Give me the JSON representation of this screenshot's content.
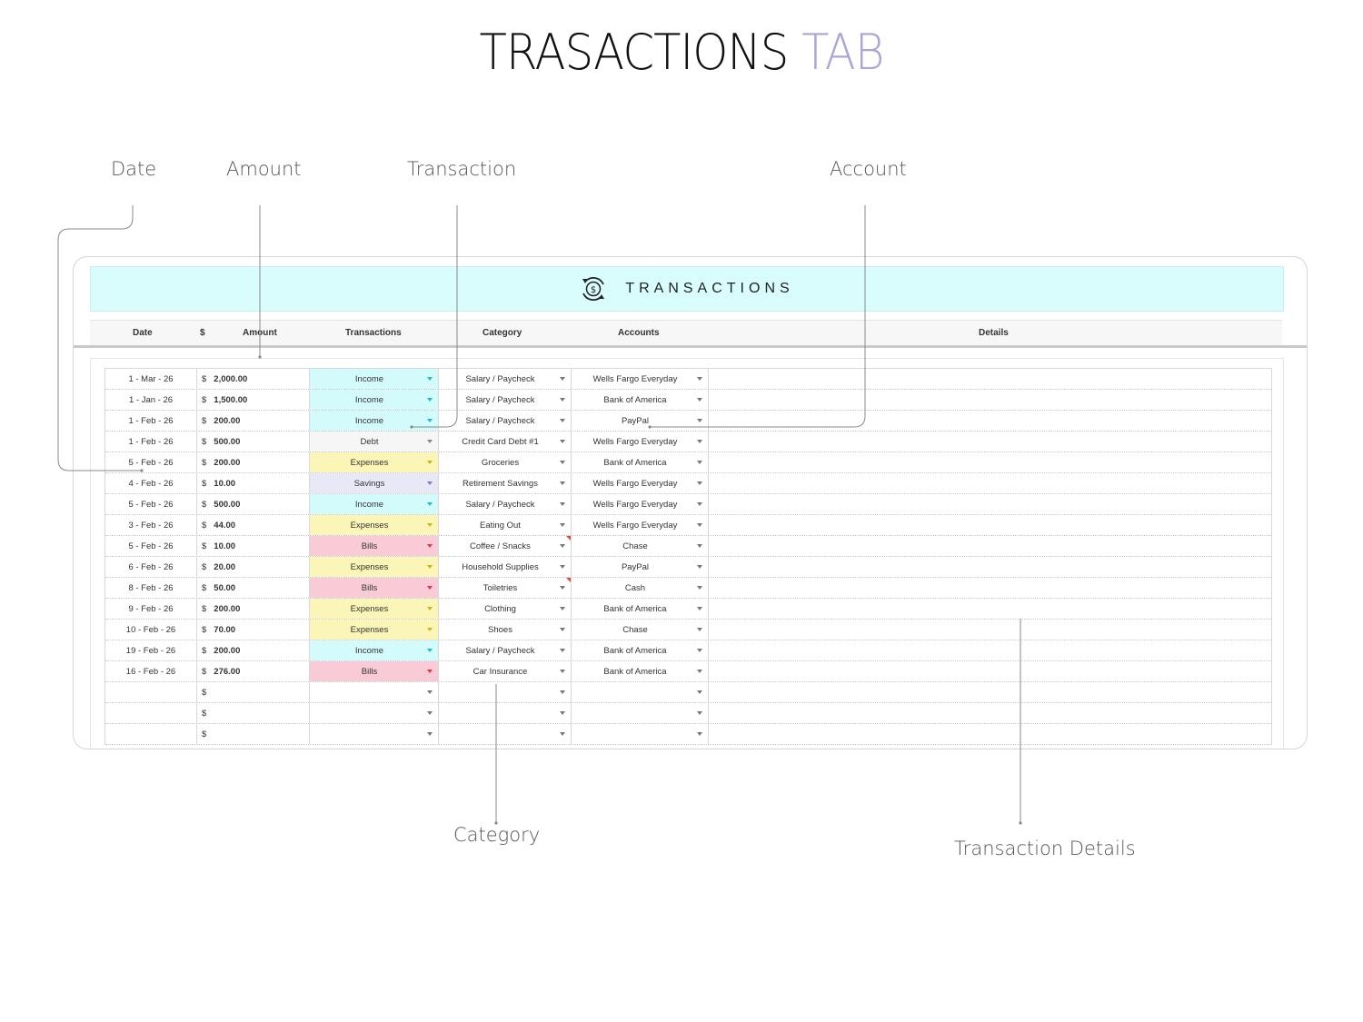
{
  "title": {
    "main": "TRASACTIONS",
    "accent": "TAB"
  },
  "colors": {
    "accent": "#a9a6d6",
    "banner": "#d9fcfd",
    "Income": "#d4fbfc",
    "Expenses": "#fbf6b7",
    "Bills": "#f9cbd6",
    "Savings": "#e9e8f6",
    "Debt": "#f6f6f6",
    "caret_Income": "#22b8c6",
    "caret_Expenses": "#c9b51c",
    "caret_Bills": "#e0334e",
    "caret_Savings": "#7f7bbf",
    "caret_Debt": "#888888"
  },
  "callouts": {
    "date": "Date",
    "amount": "Amount",
    "transaction": "Transaction",
    "account": "Account",
    "category": "Category",
    "details": "Transaction Details"
  },
  "sheet": {
    "banner_title": "TRANSACTIONS",
    "banner_icon": "dollar-cycle-icon",
    "headers": {
      "date": "Date",
      "dollar": "$",
      "amount": "Amount",
      "transactions": "Transactions",
      "category": "Category",
      "accounts": "Accounts",
      "details": "Details"
    },
    "currency_symbol": "$",
    "rows": [
      {
        "date": "1 - Mar - 26",
        "amount": "2,000.00",
        "type": "Income",
        "category": "Salary / Paycheck",
        "account": "Wells Fargo Everyday",
        "flag": false
      },
      {
        "date": "1 - Jan - 26",
        "amount": "1,500.00",
        "type": "Income",
        "category": "Salary / Paycheck",
        "account": "Bank of America",
        "flag": false
      },
      {
        "date": "1 - Feb - 26",
        "amount": "200.00",
        "type": "Income",
        "category": "Salary / Paycheck",
        "account": "PayPal",
        "flag": false
      },
      {
        "date": "1 - Feb - 26",
        "amount": "500.00",
        "type": "Debt",
        "category": "Credit Card Debt #1",
        "account": "Wells Fargo Everyday",
        "flag": false
      },
      {
        "date": "5 - Feb - 26",
        "amount": "200.00",
        "type": "Expenses",
        "category": "Groceries",
        "account": "Bank of America",
        "flag": false
      },
      {
        "date": "4 - Feb - 26",
        "amount": "10.00",
        "type": "Savings",
        "category": "Retirement Savings",
        "account": "Wells Fargo Everyday",
        "flag": false
      },
      {
        "date": "5 - Feb - 26",
        "amount": "500.00",
        "type": "Income",
        "category": "Salary / Paycheck",
        "account": "Wells Fargo Everyday",
        "flag": false
      },
      {
        "date": "3 - Feb - 26",
        "amount": "44.00",
        "type": "Expenses",
        "category": "Eating Out",
        "account": "Wells Fargo Everyday",
        "flag": false
      },
      {
        "date": "5 - Feb - 26",
        "amount": "10.00",
        "type": "Bills",
        "category": "Coffee / Snacks",
        "account": "Chase",
        "flag": true
      },
      {
        "date": "6 - Feb - 26",
        "amount": "20.00",
        "type": "Expenses",
        "category": "Household Supplies",
        "account": "PayPal",
        "flag": false
      },
      {
        "date": "8 - Feb - 26",
        "amount": "50.00",
        "type": "Bills",
        "category": "Toiletries",
        "account": "Cash",
        "flag": true
      },
      {
        "date": "9 - Feb - 26",
        "amount": "200.00",
        "type": "Expenses",
        "category": "Clothing",
        "account": "Bank of America",
        "flag": false
      },
      {
        "date": "10 - Feb - 26",
        "amount": "70.00",
        "type": "Expenses",
        "category": "Shoes",
        "account": "Chase",
        "flag": false
      },
      {
        "date": "19 - Feb - 26",
        "amount": "200.00",
        "type": "Income",
        "category": "Salary / Paycheck",
        "account": "Bank of America",
        "flag": false
      },
      {
        "date": "16 - Feb - 26",
        "amount": "276.00",
        "type": "Bills",
        "category": "Car Insurance",
        "account": "Bank of America",
        "flag": false
      },
      {
        "date": "",
        "amount": "",
        "type": "",
        "category": "",
        "account": "",
        "flag": false
      },
      {
        "date": "",
        "amount": "",
        "type": "",
        "category": "",
        "account": "",
        "flag": false
      },
      {
        "date": "",
        "amount": "",
        "type": "",
        "category": "",
        "account": "",
        "flag": false
      }
    ]
  }
}
